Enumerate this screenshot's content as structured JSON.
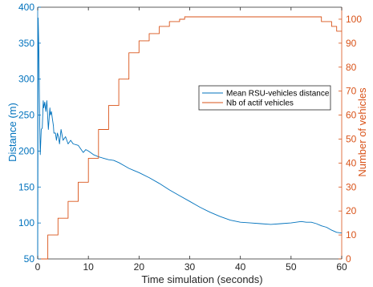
{
  "chart_data": {
    "type": "line",
    "xlabel": "Time simulation (seconds)",
    "ylabel_left": "Distance (m)",
    "ylabel_right": "Number of vehicles",
    "xlim": [
      0,
      60
    ],
    "ylim_left": [
      50,
      400
    ],
    "ylim_right": [
      0,
      105
    ],
    "x_ticks": [
      "0",
      "10",
      "20",
      "30",
      "40",
      "50",
      "60"
    ],
    "y_ticks_left": [
      "50",
      "100",
      "150",
      "200",
      "250",
      "300",
      "350",
      "400"
    ],
    "y_ticks_right": [
      "0",
      "10",
      "20",
      "30",
      "40",
      "50",
      "60",
      "70",
      "80",
      "90",
      "100"
    ],
    "grid": false,
    "legend_position": "center-right",
    "series": [
      {
        "name": "Mean RSU-vehicles distance",
        "color": "#0072BD",
        "axis": "left",
        "x": [
          0,
          0.1,
          0.25,
          0.4,
          0.5,
          0.7,
          0.9,
          1.1,
          1.2,
          1.4,
          1.6,
          1.8,
          2.1,
          2.4,
          2.5,
          2.7,
          2.9,
          3.1,
          3.2,
          3.5,
          3.7,
          3.9,
          4.1,
          4.3,
          4.6,
          5,
          5.5,
          6,
          6.5,
          7,
          8,
          9,
          9.5,
          10,
          11,
          12,
          13,
          14,
          15,
          16,
          17,
          18,
          19,
          20,
          22,
          24,
          26,
          28,
          30,
          32,
          34,
          36,
          38,
          40,
          42,
          44,
          46,
          48,
          50,
          51,
          52,
          53,
          54,
          55,
          56,
          57,
          58,
          59,
          60
        ],
        "y": [
          50,
          385,
          330,
          240,
          195,
          230,
          232,
          270,
          260,
          268,
          255,
          270,
          230,
          260,
          250,
          255,
          245,
          235,
          225,
          225,
          215,
          225,
          220,
          210,
          230,
          215,
          220,
          210,
          215,
          210,
          208,
          198,
          202,
          200,
          195,
          192,
          190,
          188,
          187,
          184,
          180,
          176,
          173,
          170,
          163,
          155,
          146,
          138,
          130,
          122,
          115,
          109,
          104,
          101,
          100,
          99,
          98,
          99,
          100,
          101,
          102,
          101,
          101,
          99,
          96,
          94,
          90,
          87,
          86
        ]
      },
      {
        "name": "Nb of actif vehicles",
        "color": "#D95319",
        "axis": "right",
        "x": [
          0,
          2,
          4,
          6,
          8,
          10,
          12,
          14,
          16,
          18,
          20,
          22,
          24,
          26,
          28,
          29,
          30,
          32,
          40,
          50,
          54,
          56,
          58,
          59,
          60
        ],
        "y": [
          0,
          10,
          17,
          24,
          32,
          42,
          54,
          64,
          75,
          86,
          91,
          94,
          97,
          99,
          100,
          101,
          101,
          101,
          101,
          101,
          101,
          99,
          97,
          95,
          95
        ]
      }
    ]
  }
}
